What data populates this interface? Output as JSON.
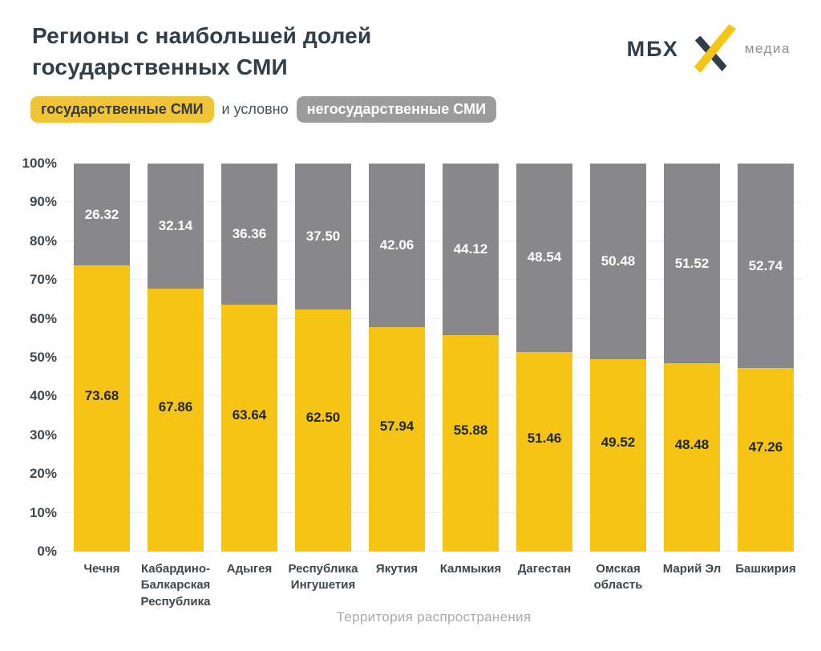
{
  "header": {
    "title_line1": "Регионы с наибольшей долей",
    "title_line2": "государственных СМИ",
    "logo": {
      "left_text": "МБХ",
      "right_text": "медиа"
    }
  },
  "legend": {
    "state_label": "государственные СМИ",
    "connector": "и условно",
    "nonstate_label": "негосударственные СМИ"
  },
  "colors": {
    "title": "#2f3e48",
    "axis_text": "#3d474d",
    "muted": "#a6aaaf",
    "grid": "#f0f0f0",
    "state": "#f5c414",
    "nonstate": "#88888b",
    "state_pill": "#f1c437",
    "nonstate_pill": "#9b9b9b",
    "logo_dark": "#2f3e48",
    "logo_yellow": "#f5c414"
  },
  "chart_data": {
    "type": "bar",
    "stacked": true,
    "grid": true,
    "ylim": [
      0,
      100
    ],
    "y_ticks": [
      "100%",
      "90%",
      "80%",
      "70%",
      "60%",
      "50%",
      "40%",
      "30%",
      "20%",
      "10%",
      "0%"
    ],
    "xlabel": "Территория распространения",
    "ylabel": "",
    "categories": [
      "Чечня",
      "Кабардино-Балкарская Республика",
      "Адыгея",
      "Республика Ингушетия",
      "Якутия",
      "Калмыкия",
      "Дагестан",
      "Омская область",
      "Марий Эл",
      "Башкирия"
    ],
    "series": [
      {
        "name": "государственные СМИ",
        "values": [
          73.68,
          67.86,
          63.64,
          62.5,
          57.94,
          55.88,
          51.46,
          49.52,
          48.48,
          47.26
        ]
      },
      {
        "name": "негосударственные СМИ",
        "values": [
          26.32,
          32.14,
          36.36,
          37.5,
          42.06,
          44.12,
          48.54,
          50.48,
          51.52,
          52.74
        ]
      }
    ]
  }
}
